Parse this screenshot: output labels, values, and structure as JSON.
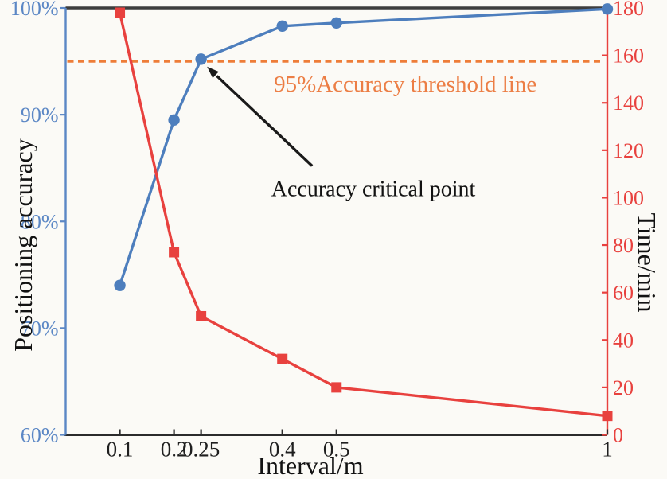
{
  "figure": {
    "background": "#fbfaf6"
  },
  "chart_data": {
    "type": "line",
    "title": "",
    "xlabel": "Interval/m",
    "ylabel_left": "Positioning accuracy",
    "ylabel_right": "Time/min",
    "grid": false,
    "legend": null,
    "xlim": [
      0,
      1
    ],
    "ylim_left": [
      60,
      100
    ],
    "ylim_right": [
      0,
      180
    ],
    "x_axis": {
      "color": "#2b2b2b",
      "tick_values": [
        0.1,
        0.2,
        0.25,
        0.4,
        0.5,
        1
      ],
      "tick_labels": [
        "0.1",
        "0.2",
        "0.25",
        "0.4",
        "0.5",
        "1"
      ]
    },
    "left_axis": {
      "color": "#5b87c5",
      "tick_values": [
        60,
        70,
        80,
        90,
        100
      ],
      "tick_labels": [
        "60%",
        "70%",
        "80%",
        "90%",
        "100%"
      ]
    },
    "right_axis": {
      "color": "#e8413e",
      "tick_values": [
        0,
        20,
        40,
        60,
        80,
        100,
        120,
        140,
        160,
        180
      ],
      "tick_labels": [
        "0",
        "20",
        "40",
        "60",
        "80",
        "100",
        "120",
        "140",
        "160",
        "180"
      ]
    },
    "x": [
      0.1,
      0.2,
      0.25,
      0.4,
      0.5,
      1
    ],
    "series": [
      {
        "name": "Positioning accuracy",
        "axis": "left",
        "color": "#4d7ebd",
        "marker": "circle",
        "values": [
          74,
          89.5,
          95.2,
          98.3,
          98.6,
          99.9
        ]
      },
      {
        "name": "Time",
        "axis": "right",
        "color": "#e8413e",
        "marker": "square",
        "values": [
          178,
          77,
          50,
          32,
          20,
          8
        ]
      }
    ],
    "threshold_line": {
      "axis": "left",
      "value": 95,
      "style": "dashed",
      "color": "#ee7d38",
      "label": "95%Accuracy threshold line",
      "label_pos": {
        "x": 0.627,
        "y": 92.9
      }
    },
    "annotation": {
      "text": "Accuracy critical point",
      "color": "#1a1a1a",
      "text_pos": {
        "x": 0.568,
        "y": 83.1
      },
      "arrow_tail": {
        "x": 0.455,
        "y": 85.2
      },
      "arrow_tip": {
        "x": 0.261,
        "y": 94.5
      },
      "points_at": {
        "x": 0.25,
        "accuracy": 95.2
      }
    }
  }
}
